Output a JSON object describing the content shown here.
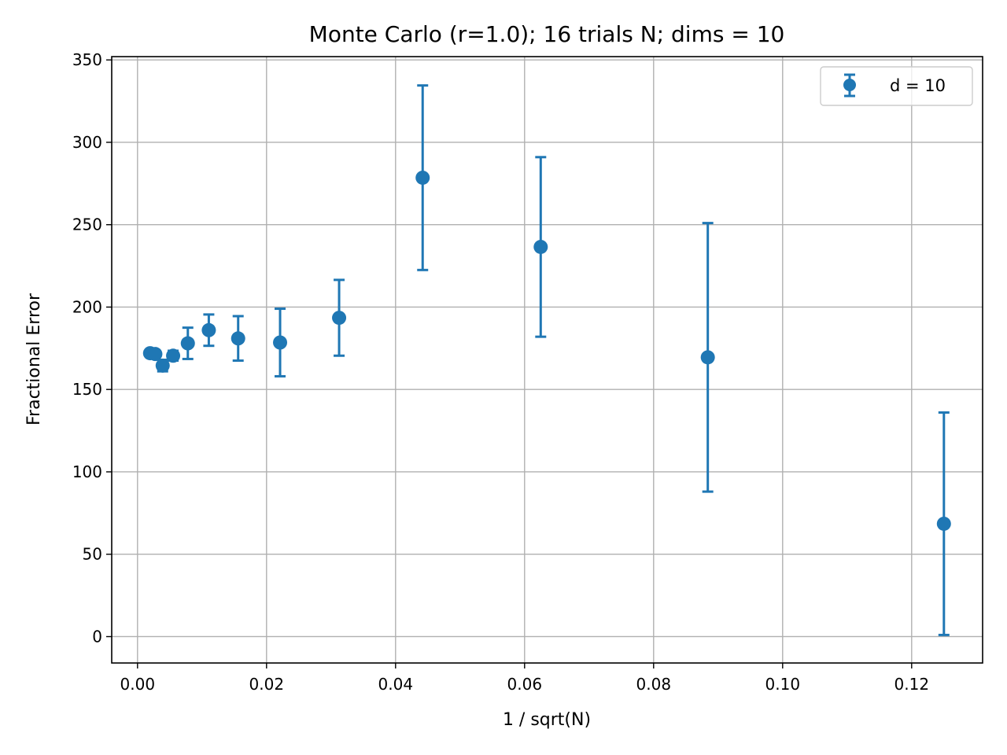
{
  "chart_data": {
    "type": "scatter",
    "title": "Monte Carlo (r=1.0); 16 trials N; dims = 10",
    "xlabel": "1 / sqrt(N)",
    "ylabel": "Fractional Error",
    "xlim": [
      -0.004,
      0.131
    ],
    "ylim": [
      -16,
      352
    ],
    "grid": true,
    "legend_position": "top-right",
    "x_ticks": [
      0.0,
      0.02,
      0.04,
      0.06,
      0.08,
      0.1,
      0.12
    ],
    "x_tick_labels": [
      "0.00",
      "0.02",
      "0.04",
      "0.06",
      "0.08",
      "0.10",
      "0.12"
    ],
    "y_ticks": [
      0,
      50,
      100,
      150,
      200,
      250,
      300,
      350
    ],
    "y_tick_labels": [
      "0",
      "50",
      "100",
      "150",
      "200",
      "250",
      "300",
      "350"
    ],
    "series": [
      {
        "name": "d = 10",
        "color": "#1f77b4",
        "marker": "circle",
        "errorbars": true,
        "x": [
          0.00195,
          0.00276,
          0.0039,
          0.00552,
          0.0078,
          0.01105,
          0.0156,
          0.0221,
          0.03125,
          0.0442,
          0.0625,
          0.0884,
          0.125
        ],
        "y": [
          172.0,
          171.5,
          164.5,
          170.5,
          178.0,
          186.0,
          181.0,
          178.5,
          193.5,
          278.5,
          236.5,
          169.5,
          68.5
        ],
        "yerr": [
          1.5,
          2.0,
          3.5,
          3.0,
          9.5,
          9.5,
          13.5,
          20.5,
          23.0,
          56.0,
          54.5,
          81.5,
          67.5
        ]
      }
    ]
  }
}
